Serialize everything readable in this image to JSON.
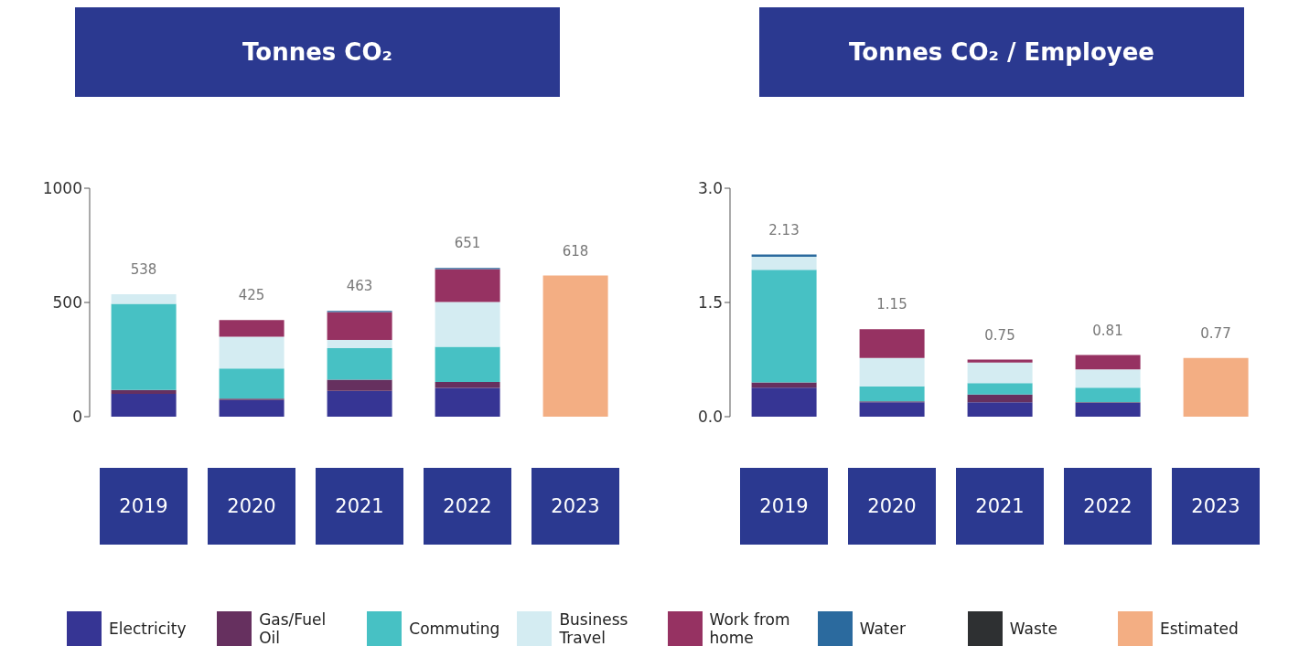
{
  "chart_data": [
    {
      "type": "bar",
      "title": "Tonnes CO₂",
      "categories": [
        "2019",
        "2020",
        "2021",
        "2022",
        "2023"
      ],
      "stacked": true,
      "legend": "bottom",
      "ylim": [
        0,
        1000
      ],
      "yticks": [
        0,
        500,
        1000
      ],
      "totals": [
        "538",
        "425",
        "463",
        "651",
        "618"
      ],
      "series": [
        {
          "name": "Electricity",
          "color": "#363594",
          "values": [
            100,
            73,
            113,
            126,
            null
          ]
        },
        {
          "name": "Gas/Fuel Oil",
          "color": "#66305f",
          "values": [
            17,
            6,
            49,
            26,
            null
          ]
        },
        {
          "name": "Commuting",
          "color": "#47c1c4",
          "values": [
            377,
            132,
            138,
            154,
            null
          ]
        },
        {
          "name": "Business Travel",
          "color": "#d4ecf2",
          "values": [
            42,
            139,
            36,
            196,
            null
          ]
        },
        {
          "name": "Work from home",
          "color": "#963262",
          "values": [
            0,
            73,
            122,
            144,
            null
          ]
        },
        {
          "name": "Water",
          "color": "#2b6a9e",
          "values": [
            null,
            null,
            5,
            5,
            null
          ]
        },
        {
          "name": "Waste",
          "color": "#2e3032",
          "values": [
            0,
            0,
            0,
            0,
            null
          ]
        },
        {
          "name": "Estimated",
          "color": "#f3ae83",
          "values": [
            null,
            null,
            null,
            null,
            618
          ]
        }
      ]
    },
    {
      "type": "bar",
      "title": "Tonnes CO₂ / Employee",
      "categories": [
        "2019",
        "2020",
        "2021",
        "2022",
        "2023"
      ],
      "stacked": true,
      "ylim": [
        0,
        3
      ],
      "yticks": [
        {
          "value": 0,
          "label": "0.0"
        },
        {
          "value": 1.5,
          "label": "1.5"
        },
        {
          "value": 3,
          "label": "3.0"
        }
      ],
      "totals": [
        "2.13",
        "1.15",
        "0.75",
        "0.81",
        "0.77"
      ],
      "series": [
        {
          "color": "#363594",
          "values": [
            0.38,
            0.19,
            0.19,
            0.18,
            null
          ]
        },
        {
          "color": "#66305f",
          "values": [
            0.07,
            0.01,
            0.1,
            0.01,
            null
          ]
        },
        {
          "color": "#47c1c4",
          "values": [
            1.48,
            0.2,
            0.15,
            0.19,
            null
          ]
        },
        {
          "color": "#d4ecf2",
          "values": [
            0.17,
            0.37,
            0.27,
            0.24,
            null
          ]
        },
        {
          "color": "#963262",
          "values": [
            0,
            0.38,
            0.04,
            0.19,
            null
          ]
        },
        {
          "color": "#2b6a9e",
          "values": [
            0.03,
            0,
            0,
            0,
            null
          ]
        },
        {
          "color": "#2e3032",
          "values": [
            0,
            0,
            0,
            0,
            null
          ]
        },
        {
          "color": "#f3ae83",
          "values": [
            null,
            null,
            null,
            null,
            0.77
          ]
        }
      ]
    }
  ]
}
